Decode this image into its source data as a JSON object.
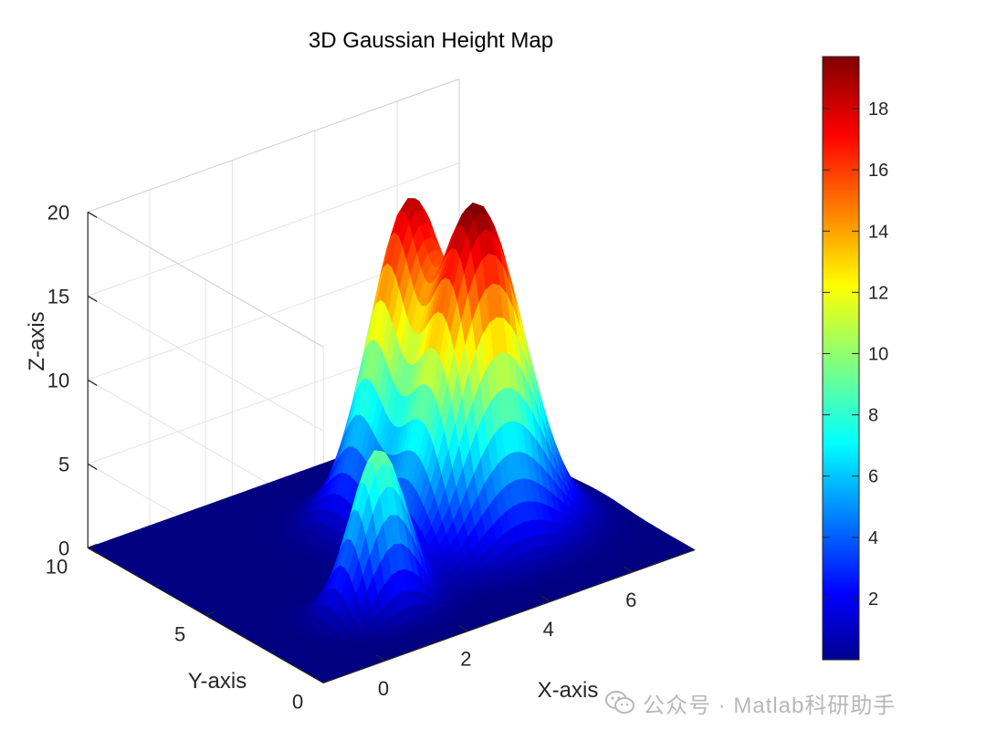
{
  "chart_data": {
    "type": "surface",
    "title": "3D Gaussian Height Map",
    "xlabel": "X-axis",
    "ylabel": "Y-axis",
    "zlabel": "Z-axis",
    "xlim": [
      -1.5,
      7.5
    ],
    "ylim": [
      0,
      10
    ],
    "zlim": [
      0,
      20
    ],
    "x_ticks": [
      "0",
      "2",
      "4",
      "6"
    ],
    "y_ticks": [
      "0",
      "5",
      "10"
    ],
    "z_ticks": [
      "0",
      "5",
      "10",
      "15",
      "20"
    ],
    "colormap": "jet",
    "colorbar": {
      "range": [
        0,
        19.7
      ],
      "ticks": [
        "2",
        "4",
        "6",
        "8",
        "10",
        "12",
        "14",
        "16",
        "18"
      ]
    },
    "grid": true,
    "peaks": [
      {
        "x": 4.5,
        "y": 4.0,
        "height": 19.7,
        "width": 1.0
      },
      {
        "x": 4.2,
        "y": 6.4,
        "height": 17.6,
        "width": 0.85
      },
      {
        "x": 1.2,
        "y": 2.4,
        "height": 9.6,
        "width": 0.6
      }
    ]
  },
  "watermark": {
    "text": "公众号 · Matlab科研助手"
  }
}
